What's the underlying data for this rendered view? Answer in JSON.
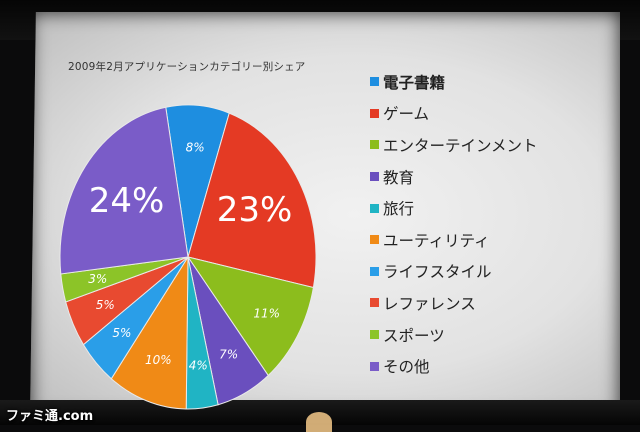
{
  "chart_data": {
    "type": "pie",
    "title": "2009年2月アプリケーションカテゴリー別シェア",
    "legend_position": "right",
    "slices": [
      {
        "label": "電子書籍",
        "value": 8,
        "value_label": "8%",
        "color": "#1e8ee0"
      },
      {
        "label": "ゲーム",
        "value": 23,
        "value_label": "23%",
        "color": "#e43a24"
      },
      {
        "label": "エンターテインメント",
        "value": 11,
        "value_label": "11%",
        "color": "#8cbd1d"
      },
      {
        "label": "教育",
        "value": 7,
        "value_label": "7%",
        "color": "#6a4fbe"
      },
      {
        "label": "旅行",
        "value": 4,
        "value_label": "4%",
        "color": "#20b4c4"
      },
      {
        "label": "ユーティリティ",
        "value": 10,
        "value_label": "10%",
        "color": "#f08a16"
      },
      {
        "label": "ライフスタイル",
        "value": 5,
        "value_label": "5%",
        "color": "#2a9ee8"
      },
      {
        "label": "レファレンス",
        "value": 5,
        "value_label": "5%",
        "color": "#e84a30"
      },
      {
        "label": "スポーツ",
        "value": 3,
        "value_label": "3%",
        "color": "#8cc428"
      },
      {
        "label": "その他",
        "value": 24,
        "value_label": "24%",
        "color": "#7a5cc8"
      }
    ]
  },
  "watermark": "ファミ通.com"
}
